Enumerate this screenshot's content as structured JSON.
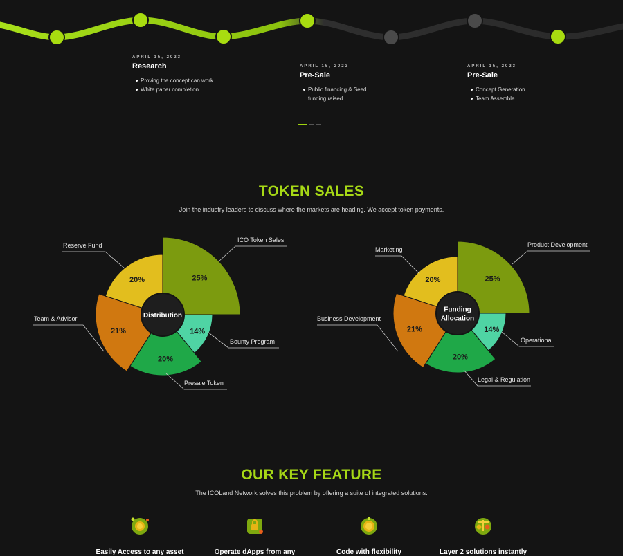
{
  "roadmap": {
    "milestones": [
      {
        "date": "APRIL 15, 2023",
        "title": "Research",
        "points": [
          "Proving the concept can work",
          "White paper completion"
        ]
      },
      {
        "date": "APRIL 15, 2023",
        "title": "Pre-Sale",
        "points": [
          "Public financing & Seed funding raised"
        ]
      },
      {
        "date": "APRIL 15, 2023",
        "title": "Pre-Sale",
        "points": [
          "Concept Generation",
          "Team Assemble"
        ]
      }
    ],
    "pager_active": 1,
    "pager_count": 3
  },
  "token_sales": {
    "title": "TOKEN SALES",
    "subtitle": "Join the industry leaders to discuss where the markets are heading. We accept token payments."
  },
  "chart_data": [
    {
      "type": "pie",
      "title": "Distribution",
      "slices": [
        {
          "label": "ICO Token Sales",
          "value": 25,
          "display": "25%",
          "color": "#7c9b0f"
        },
        {
          "label": "Bounty Program",
          "value": 14,
          "display": "14%",
          "color": "#4fd4a4"
        },
        {
          "label": "Presale Token",
          "value": 20,
          "display": "20%",
          "color": "#1fa848"
        },
        {
          "label": "Team & Advisor",
          "value": 21,
          "display": "21%",
          "color": "#d07810"
        },
        {
          "label": "Reserve Fund",
          "value": 20,
          "display": "20%",
          "color": "#e2be1e"
        }
      ]
    },
    {
      "type": "pie",
      "title": "Funding Allocation",
      "slices": [
        {
          "label": "Product Development",
          "value": 25,
          "display": "25%",
          "color": "#7c9b0f"
        },
        {
          "label": "Operational",
          "value": 14,
          "display": "14%",
          "color": "#4fd4a4"
        },
        {
          "label": "Legal & Regulation",
          "value": 20,
          "display": "20%",
          "color": "#1fa848"
        },
        {
          "label": "Business Development",
          "value": 21,
          "display": "21%",
          "color": "#d07810"
        },
        {
          "label": "Marketing",
          "value": 20,
          "display": "20%",
          "color": "#e2be1e"
        }
      ]
    }
  ],
  "key_feature": {
    "title": "OUR KEY FEATURE",
    "subtitle": "The ICOLand Network solves this problem by offering a suite of integrated solutions.",
    "items": [
      {
        "icon": "coin-globe-icon",
        "label": "Easily Access to any asset"
      },
      {
        "icon": "dapp-lock-icon",
        "label": "Operate dApps from any"
      },
      {
        "icon": "coin-code-icon",
        "label": "Code with flexibility"
      },
      {
        "icon": "scales-icon",
        "label": "Layer 2 solutions instantly"
      }
    ]
  },
  "colors": {
    "accent": "#a6d816",
    "background": "#141414",
    "wave_active": "#8cc20e",
    "wave_inactive": "#2e2e2e"
  }
}
